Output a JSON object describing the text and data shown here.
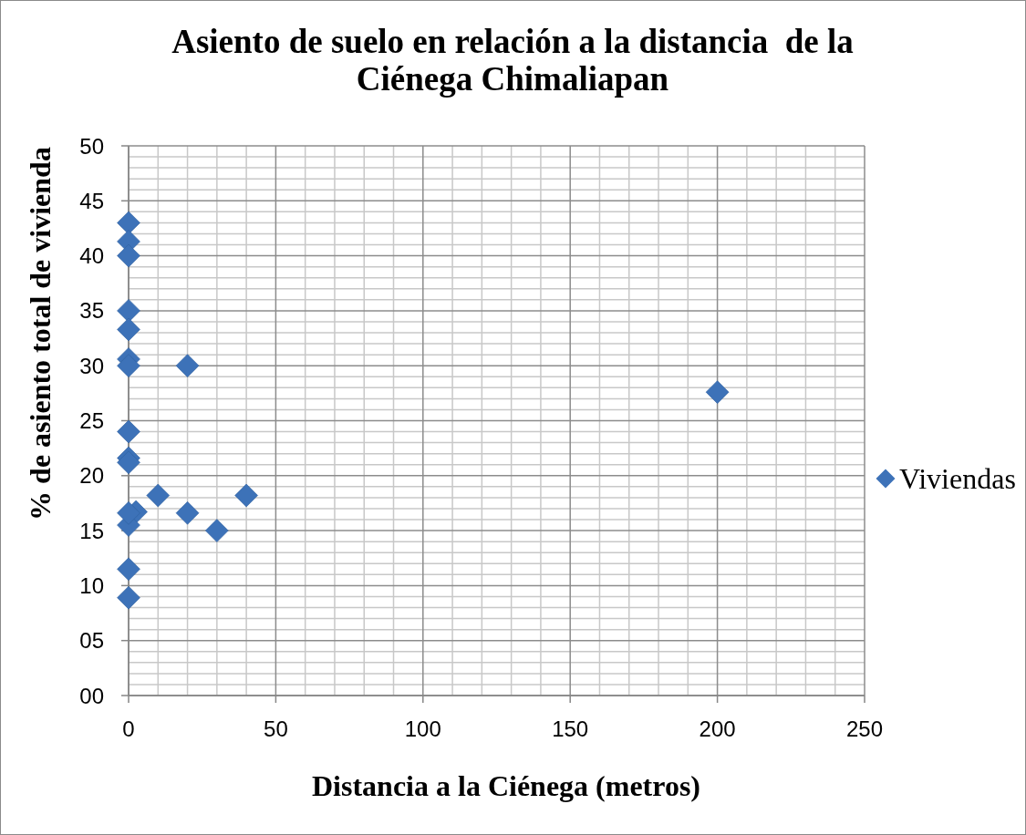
{
  "chart_data": {
    "type": "scatter",
    "title": "Asiento de suelo en relación a la distancia  de la Ciénega Chimaliapan",
    "xlabel": "Distancia a la Ciénega (metros)",
    "ylabel": "% de asiento total de vivienda",
    "x": [
      0,
      0,
      0,
      0,
      0,
      0,
      0,
      20,
      0,
      0,
      0,
      10,
      40,
      2.5,
      0,
      0,
      20,
      30,
      0,
      0,
      200
    ],
    "series": [
      {
        "name": "Viviendas",
        "color": "#3d72b8",
        "values": [
          43,
          41.3,
          40,
          35,
          33.3,
          30.6,
          30,
          30,
          24,
          21.6,
          21.2,
          18.2,
          18.2,
          16.7,
          15.5,
          16.6,
          16.6,
          15,
          11.5,
          8.9,
          27.6
        ]
      }
    ],
    "xlim": [
      0,
      250
    ],
    "ylim": [
      0,
      50
    ],
    "xticks": [
      0,
      {
        "value": 10,
        "label": null
      },
      {
        "value": 20,
        "label": null
      },
      {
        "value": 30,
        "label": null
      },
      {
        "value": 40,
        "label": null
      },
      50,
      {
        "value": 60,
        "label": null
      },
      {
        "value": 70,
        "label": null
      },
      {
        "value": 80,
        "label": null
      },
      {
        "value": 90,
        "label": null
      },
      100,
      {
        "value": 110,
        "label": null
      },
      {
        "value": 120,
        "label": null
      },
      {
        "value": 130,
        "label": null
      },
      {
        "value": 140,
        "label": null
      },
      150,
      {
        "value": 160,
        "label": null
      },
      {
        "value": 170,
        "label": null
      },
      {
        "value": 180,
        "label": null
      },
      {
        "value": 190,
        "label": null
      },
      200,
      {
        "value": 210,
        "label": null
      },
      {
        "value": 220,
        "label": null
      },
      {
        "value": 230,
        "label": null
      },
      {
        "value": 240,
        "label": null
      },
      250
    ],
    "yticks": [
      {
        "value": 0,
        "label": "00"
      },
      {
        "value": 1,
        "label": null
      },
      {
        "value": 2,
        "label": null
      },
      {
        "value": 3,
        "label": null
      },
      {
        "value": 4,
        "label": null
      },
      {
        "value": 5,
        "label": "05"
      },
      {
        "value": 6,
        "label": null
      },
      {
        "value": 7,
        "label": null
      },
      {
        "value": 8,
        "label": null
      },
      {
        "value": 9,
        "label": null
      },
      10,
      {
        "value": 11,
        "label": null
      },
      {
        "value": 12,
        "label": null
      },
      {
        "value": 13,
        "label": null
      },
      {
        "value": 14,
        "label": null
      },
      15,
      {
        "value": 16,
        "label": null
      },
      {
        "value": 17,
        "label": null
      },
      {
        "value": 18,
        "label": null
      },
      {
        "value": 19,
        "label": null
      },
      20,
      {
        "value": 21,
        "label": null
      },
      {
        "value": 22,
        "label": null
      },
      {
        "value": 23,
        "label": null
      },
      {
        "value": 24,
        "label": null
      },
      25,
      {
        "value": 26,
        "label": null
      },
      {
        "value": 27,
        "label": null
      },
      {
        "value": 28,
        "label": null
      },
      {
        "value": 29,
        "label": null
      },
      30,
      {
        "value": 31,
        "label": null
      },
      {
        "value": 32,
        "label": null
      },
      {
        "value": 33,
        "label": null
      },
      {
        "value": 34,
        "label": null
      },
      35,
      {
        "value": 36,
        "label": null
      },
      {
        "value": 37,
        "label": null
      },
      {
        "value": 38,
        "label": null
      },
      {
        "value": 39,
        "label": null
      },
      40,
      {
        "value": 41,
        "label": null
      },
      {
        "value": 42,
        "label": null
      },
      {
        "value": 43,
        "label": null
      },
      {
        "value": 44,
        "label": null
      },
      45,
      {
        "value": 46,
        "label": null
      },
      {
        "value": 47,
        "label": null
      },
      {
        "value": 48,
        "label": null
      },
      {
        "value": 49,
        "label": null
      },
      50
    ],
    "grid": true,
    "legend": "right",
    "marker": "diamond"
  }
}
